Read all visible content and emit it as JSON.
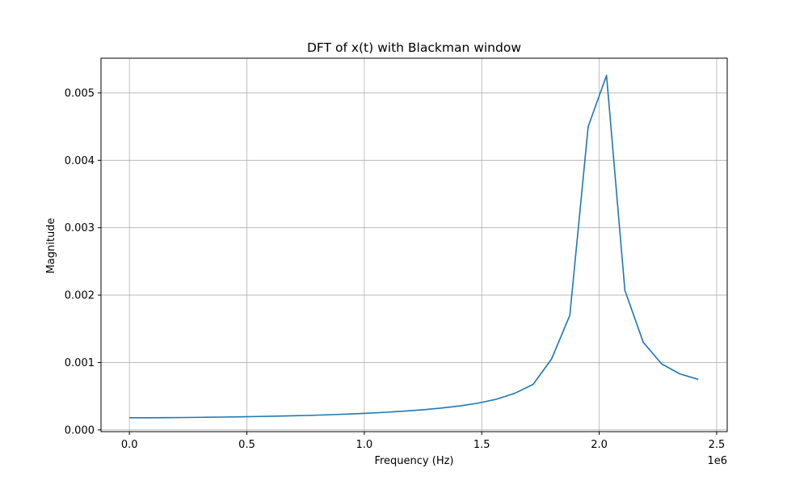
{
  "chart_data": {
    "type": "line",
    "title": "DFT of x(t) with Blackman window",
    "xlabel": "Frequency (Hz)",
    "ylabel": "Magnitude",
    "x_offset_label": "1e6",
    "xlim": [
      -0.121,
      2.545
    ],
    "ylim": [
      -2.6e-05,
      0.005515
    ],
    "grid": true,
    "x_ticks": [
      {
        "value": 0.0,
        "label": "0.0"
      },
      {
        "value": 0.5,
        "label": "0.5"
      },
      {
        "value": 1.0,
        "label": "1.0"
      },
      {
        "value": 1.5,
        "label": "1.5"
      },
      {
        "value": 2.0,
        "label": "2.0"
      },
      {
        "value": 2.5,
        "label": "2.5"
      }
    ],
    "y_ticks": [
      {
        "value": 0.0,
        "label": "0.000"
      },
      {
        "value": 0.001,
        "label": "0.001"
      },
      {
        "value": 0.002,
        "label": "0.002"
      },
      {
        "value": 0.003,
        "label": "0.003"
      },
      {
        "value": 0.004,
        "label": "0.004"
      },
      {
        "value": 0.005,
        "label": "0.005"
      }
    ],
    "series": [
      {
        "color": "#1f77b4",
        "x": [
          0.0,
          0.0781,
          0.1563,
          0.2344,
          0.3125,
          0.3906,
          0.4688,
          0.5469,
          0.625,
          0.7031,
          0.7813,
          0.8594,
          0.9375,
          1.0156,
          1.0938,
          1.1719,
          1.25,
          1.3281,
          1.4063,
          1.4844,
          1.5625,
          1.6406,
          1.7188,
          1.7969,
          1.875,
          1.9531,
          2.0313,
          2.1094,
          2.1875,
          2.2656,
          2.3438,
          2.4219
        ],
        "y": [
          0.00018,
          0.00018,
          0.000182,
          0.000184,
          0.000187,
          0.00019,
          0.000194,
          0.000199,
          0.000204,
          0.00021,
          0.000217,
          0.000226,
          0.000236,
          0.000248,
          0.000262,
          0.000279,
          0.000299,
          0.000324,
          0.000356,
          0.000397,
          0.000455,
          0.000543,
          0.000676,
          0.00105,
          0.0017,
          0.0045,
          0.00526,
          0.00207,
          0.0013,
          0.00098,
          0.00083,
          0.00075
        ]
      }
    ]
  }
}
